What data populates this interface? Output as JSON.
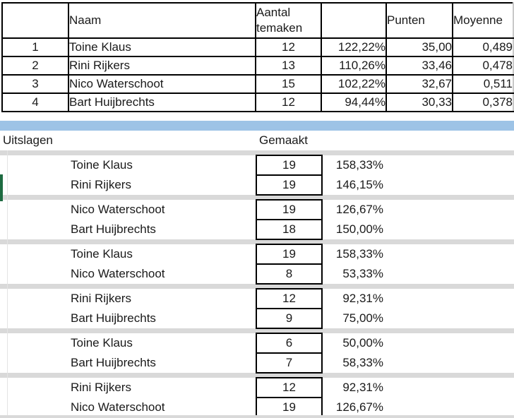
{
  "standings_table": {
    "headers": {
      "rank": "",
      "naam": "Naam",
      "aantal": "Aantal temaken",
      "pct": "",
      "punten": "Punten",
      "moyenne": "Moyenne"
    },
    "rows": [
      {
        "rank": "1",
        "naam": "Toine Klaus",
        "aantal": "12",
        "pct": "122,22%",
        "punten": "35,00",
        "moyenne": "0,489"
      },
      {
        "rank": "2",
        "naam": "Rini Rijkers",
        "aantal": "13",
        "pct": "110,26%",
        "punten": "33,46",
        "moyenne": "0,478"
      },
      {
        "rank": "3",
        "naam": "Nico Waterschoot",
        "aantal": "15",
        "pct": "102,22%",
        "punten": "32,67",
        "moyenne": "0,511"
      },
      {
        "rank": "4",
        "naam": "Bart Huijbrechts",
        "aantal": "12",
        "pct": "94,44%",
        "punten": "30,33",
        "moyenne": "0,378"
      }
    ]
  },
  "results_section": {
    "title": "Uitslagen",
    "gemaakt_label": "Gemaakt",
    "matches": [
      {
        "players": [
          {
            "name": "Toine Klaus",
            "gemaakt": "19",
            "pct": "158,33%"
          },
          {
            "name": "Rini Rijkers",
            "gemaakt": "19",
            "pct": "146,15%"
          }
        ]
      },
      {
        "players": [
          {
            "name": "Nico Waterschoot",
            "gemaakt": "19",
            "pct": "126,67%"
          },
          {
            "name": "Bart Huijbrechts",
            "gemaakt": "18",
            "pct": "150,00%"
          }
        ]
      },
      {
        "players": [
          {
            "name": "Toine Klaus",
            "gemaakt": "19",
            "pct": "158,33%"
          },
          {
            "name": "Nico Waterschoot",
            "gemaakt": "8",
            "pct": "53,33%"
          }
        ]
      },
      {
        "players": [
          {
            "name": "Rini Rijkers",
            "gemaakt": "12",
            "pct": "92,31%"
          },
          {
            "name": "Bart Huijbrechts",
            "gemaakt": "9",
            "pct": "75,00%"
          }
        ]
      },
      {
        "players": [
          {
            "name": "Toine Klaus",
            "gemaakt": "6",
            "pct": "50,00%"
          },
          {
            "name": "Bart Huijbrechts",
            "gemaakt": "7",
            "pct": "58,33%"
          }
        ]
      },
      {
        "players": [
          {
            "name": "Rini Rijkers",
            "gemaakt": "12",
            "pct": "92,31%"
          },
          {
            "name": "Nico Waterschoot",
            "gemaakt": "19",
            "pct": "126,67%"
          }
        ]
      }
    ]
  },
  "colors": {
    "band_blue": "#9DC3E6",
    "separator_gray": "#D9D9D9",
    "selection_green": "#1E6B41",
    "border_black": "#000000"
  }
}
